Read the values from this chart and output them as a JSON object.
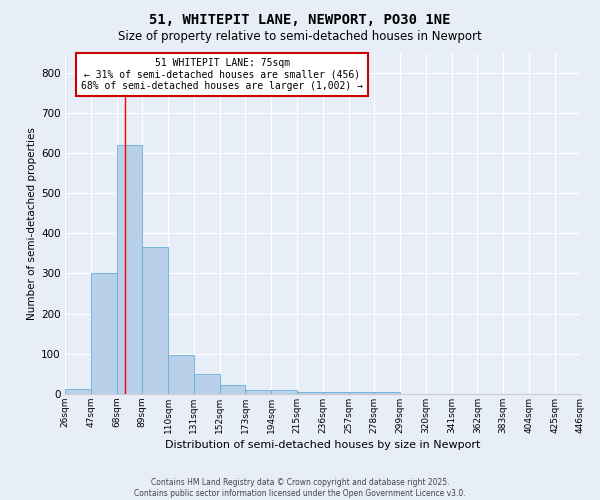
{
  "title": "51, WHITEPIT LANE, NEWPORT, PO30 1NE",
  "subtitle": "Size of property relative to semi-detached houses in Newport",
  "xlabel": "Distribution of semi-detached houses by size in Newport",
  "ylabel": "Number of semi-detached properties",
  "footer1": "Contains HM Land Registry data © Crown copyright and database right 2025.",
  "footer2": "Contains public sector information licensed under the Open Government Licence v3.0.",
  "bin_edges": [
    26,
    47,
    68,
    89,
    110,
    131,
    152,
    173,
    194,
    215,
    236,
    257,
    278,
    299,
    320,
    341,
    362,
    383,
    404,
    425,
    446
  ],
  "bar_heights": [
    12,
    302,
    620,
    365,
    98,
    50,
    22,
    10,
    10,
    5,
    5,
    5,
    5,
    0,
    0,
    0,
    0,
    0,
    0,
    0
  ],
  "bar_color": "#b8d0ea",
  "bar_edge_color": "#6aaed6",
  "background_color": "#e8eef8",
  "grid_color": "#d0d8ee",
  "red_line_x": 75,
  "annotation_text": "51 WHITEPIT LANE: 75sqm\n← 31% of semi-detached houses are smaller (456)\n68% of semi-detached houses are larger (1,002) →",
  "annotation_box_color": "#ffffff",
  "annotation_box_edge": "#cc0000",
  "ylim": [
    0,
    850
  ],
  "yticks": [
    0,
    100,
    200,
    300,
    400,
    500,
    600,
    700,
    800
  ]
}
